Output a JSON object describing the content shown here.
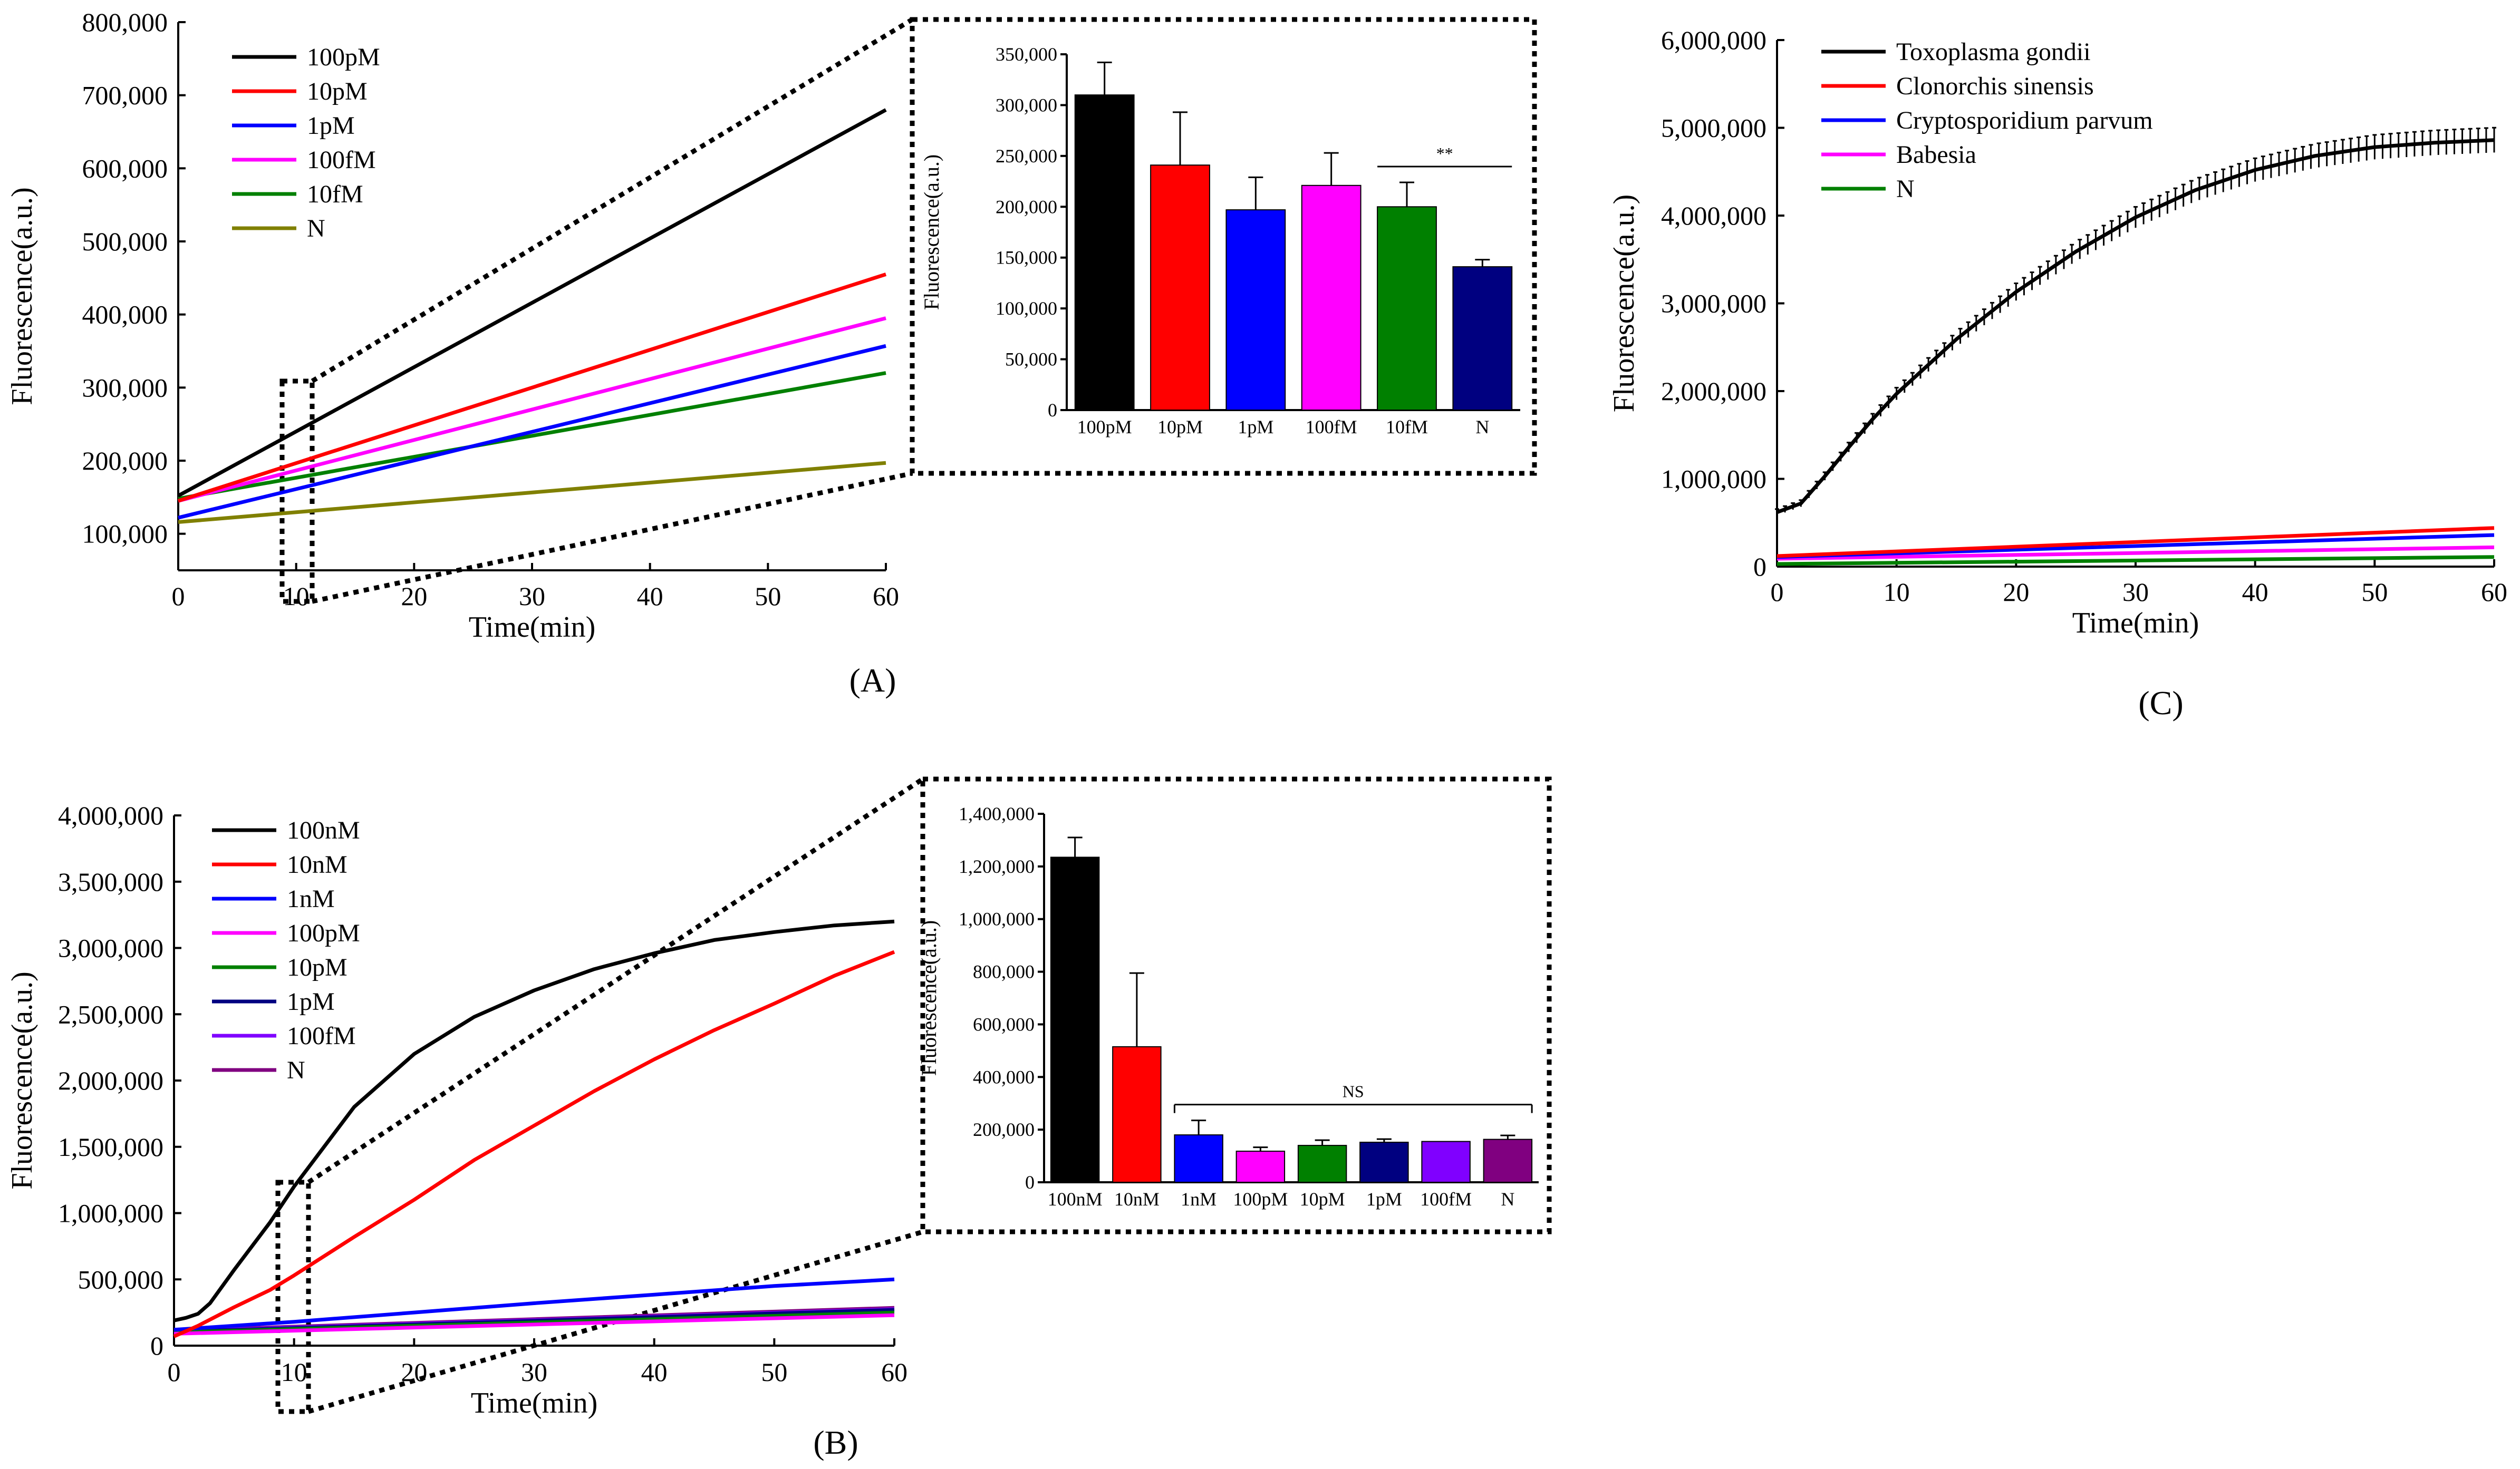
{
  "panel_labels": {
    "A": "(A)",
    "B": "(B)",
    "C": "(C)"
  },
  "chart_data": [
    {
      "id": "A_main",
      "type": "line",
      "xlabel": "Time(min)",
      "ylabel": "Fluorescence(a.u.)",
      "xlim": [
        0,
        60
      ],
      "ylim": [
        50000,
        800000
      ],
      "xticks": [
        0,
        10,
        20,
        30,
        40,
        50,
        60
      ],
      "xtick_labels": [
        "0",
        "10",
        "20",
        "30",
        "40",
        "50",
        "60"
      ],
      "yticks": [
        100000,
        200000,
        300000,
        400000,
        500000,
        600000,
        700000,
        800000
      ],
      "ytick_labels": [
        "100,000",
        "200,000",
        "300,000",
        "400,000",
        "500,000",
        "600,000",
        "700,000",
        "800,000"
      ],
      "legend": "top-left",
      "series": [
        {
          "name": "100pM",
          "color": "#000000",
          "x": [
            0,
            60
          ],
          "y": [
            152000,
            680000
          ]
        },
        {
          "name": "10pM",
          "color": "#ff0000",
          "x": [
            0,
            60
          ],
          "y": [
            145000,
            455000
          ]
        },
        {
          "name": "1pM",
          "color": "#0000ff",
          "x": [
            0,
            60
          ],
          "y": [
            122000,
            357000
          ]
        },
        {
          "name": "100fM",
          "color": "#ff00ff",
          "x": [
            0,
            60
          ],
          "y": [
            145000,
            395000
          ]
        },
        {
          "name": "10fM",
          "color": "#008000",
          "x": [
            0,
            60
          ],
          "y": [
            148000,
            320000
          ]
        },
        {
          "name": "N",
          "color": "#808000",
          "x": [
            0,
            60
          ],
          "y": [
            116000,
            197000
          ]
        }
      ]
    },
    {
      "id": "A_inset",
      "type": "bar",
      "ylabel": "Fluorescence(a.u.)",
      "ylim": [
        0,
        350000
      ],
      "yticks": [
        0,
        50000,
        100000,
        150000,
        200000,
        250000,
        300000,
        350000
      ],
      "ytick_labels": [
        "0",
        "50,000",
        "100,000",
        "150,000",
        "200,000",
        "250,000",
        "300,000",
        "350,000"
      ],
      "categories": [
        "100pM",
        "10pM",
        "1pM",
        "100fM",
        "10fM",
        "N"
      ],
      "values": [
        310000,
        241000,
        197000,
        221000,
        200000,
        141000
      ],
      "errors": [
        32000,
        52000,
        32000,
        32000,
        24000,
        7000
      ],
      "colors": [
        "#000000",
        "#ff0000",
        "#0000ff",
        "#ff00ff",
        "#008000",
        "#000080"
      ],
      "annotation": {
        "text": "**",
        "from": 4,
        "to": 5
      }
    },
    {
      "id": "B_main",
      "type": "line",
      "xlabel": "Time(min)",
      "ylabel": "Fluorescence(a.u.)",
      "xlim": [
        0,
        60
      ],
      "ylim": [
        0,
        4000000
      ],
      "xticks": [
        0,
        10,
        20,
        30,
        40,
        50,
        60
      ],
      "xtick_labels": [
        "0",
        "10",
        "20",
        "30",
        "40",
        "50",
        "60"
      ],
      "yticks": [
        0,
        500000,
        1000000,
        1500000,
        2000000,
        2500000,
        3000000,
        3500000,
        4000000
      ],
      "ytick_labels": [
        "0",
        "500,000",
        "1,000,000",
        "1,500,000",
        "2,000,000",
        "2,500,000",
        "3,000,000",
        "3,500,000",
        "4,000,000"
      ],
      "legend": "top-left",
      "series": [
        {
          "name": "100nM",
          "color": "#000000",
          "x": [
            0,
            1,
            2,
            3,
            5,
            8,
            10,
            15,
            20,
            25,
            30,
            35,
            40,
            45,
            50,
            55,
            60
          ],
          "y": [
            190000,
            210000,
            240000,
            320000,
            570000,
            930000,
            1200000,
            1800000,
            2200000,
            2480000,
            2680000,
            2840000,
            2960000,
            3060000,
            3120000,
            3170000,
            3200000
          ]
        },
        {
          "name": "10nM",
          "color": "#ff0000",
          "x": [
            0,
            2,
            5,
            8,
            10,
            15,
            20,
            25,
            30,
            35,
            40,
            45,
            50,
            55,
            60
          ],
          "y": [
            70000,
            150000,
            290000,
            420000,
            530000,
            820000,
            1100000,
            1400000,
            1660000,
            1920000,
            2160000,
            2380000,
            2580000,
            2790000,
            2970000
          ]
        },
        {
          "name": "1nM",
          "color": "#0000ff",
          "x": [
            0,
            10,
            20,
            30,
            40,
            50,
            60
          ],
          "y": [
            120000,
            180000,
            250000,
            320000,
            385000,
            450000,
            500000
          ]
        },
        {
          "name": "100pM",
          "color": "#ff00ff",
          "x": [
            0,
            60
          ],
          "y": [
            90000,
            230000
          ]
        },
        {
          "name": "10pM",
          "color": "#008000",
          "x": [
            0,
            60
          ],
          "y": [
            100000,
            250000
          ]
        },
        {
          "name": "1pM",
          "color": "#000080",
          "x": [
            0,
            60
          ],
          "y": [
            105000,
            270000
          ]
        },
        {
          "name": "100fM",
          "color": "#8000ff",
          "x": [
            0,
            60
          ],
          "y": [
            110000,
            275000
          ]
        },
        {
          "name": "N",
          "color": "#800080",
          "x": [
            0,
            60
          ],
          "y": [
            115000,
            285000
          ]
        }
      ]
    },
    {
      "id": "B_inset",
      "type": "bar",
      "ylabel": "Fluorescence(a.u.)",
      "ylim": [
        0,
        1400000
      ],
      "yticks": [
        0,
        200000,
        400000,
        600000,
        800000,
        1000000,
        1200000,
        1400000
      ],
      "ytick_labels": [
        "0",
        "200,000",
        "400,000",
        "600,000",
        "800,000",
        "1,000,000",
        "1,200,000",
        "1,400,000"
      ],
      "categories": [
        "100nM",
        "10nM",
        "1nM",
        "100pM",
        "10pM",
        "1pM",
        "100fM",
        "N"
      ],
      "values": [
        1235000,
        515000,
        180000,
        118000,
        140000,
        152000,
        155000,
        163000
      ],
      "errors": [
        75000,
        280000,
        55000,
        15000,
        20000,
        12000,
        0,
        15000
      ],
      "colors": [
        "#000000",
        "#ff0000",
        "#0000ff",
        "#ff00ff",
        "#008000",
        "#000080",
        "#8000ff",
        "#800080"
      ],
      "annotation": {
        "text": "NS",
        "from": 2,
        "to": 7
      }
    },
    {
      "id": "C_main",
      "type": "line",
      "xlabel": "Time(min)",
      "ylabel": "Fluorescence(a.u.)",
      "xlim": [
        0,
        60
      ],
      "ylim": [
        0,
        6000000
      ],
      "xticks": [
        0,
        10,
        20,
        30,
        40,
        50,
        60
      ],
      "xtick_labels": [
        "0",
        "10",
        "20",
        "30",
        "40",
        "50",
        "60"
      ],
      "yticks": [
        0,
        1000000,
        2000000,
        3000000,
        4000000,
        5000000,
        6000000
      ],
      "ytick_labels": [
        "0",
        "1,000,000",
        "2,000,000",
        "3,000,000",
        "4,000,000",
        "5,000,000",
        "6,000,000"
      ],
      "legend": "top-left",
      "series": [
        {
          "name": "Toxoplasma gondii",
          "color": "#000000",
          "error_bars": true,
          "x": [
            0,
            2,
            4,
            6,
            8,
            10,
            15,
            20,
            25,
            30,
            35,
            40,
            45,
            50,
            55,
            60
          ],
          "y": [
            620000,
            720000,
            1030000,
            1360000,
            1680000,
            1970000,
            2590000,
            3130000,
            3590000,
            3980000,
            4290000,
            4520000,
            4680000,
            4780000,
            4830000,
            4860000
          ]
        },
        {
          "name": "Clonorchis sinensis",
          "color": "#ff0000",
          "x": [
            0,
            60
          ],
          "y": [
            120000,
            440000
          ]
        },
        {
          "name": "Cryptosporidium parvum",
          "color": "#0000ff",
          "x": [
            0,
            60
          ],
          "y": [
            110000,
            360000
          ]
        },
        {
          "name": "Babesia",
          "color": "#ff00ff",
          "x": [
            0,
            60
          ],
          "y": [
            90000,
            220000
          ]
        },
        {
          "name": "N",
          "color": "#008000",
          "x": [
            0,
            60
          ],
          "y": [
            30000,
            110000
          ]
        }
      ]
    }
  ]
}
